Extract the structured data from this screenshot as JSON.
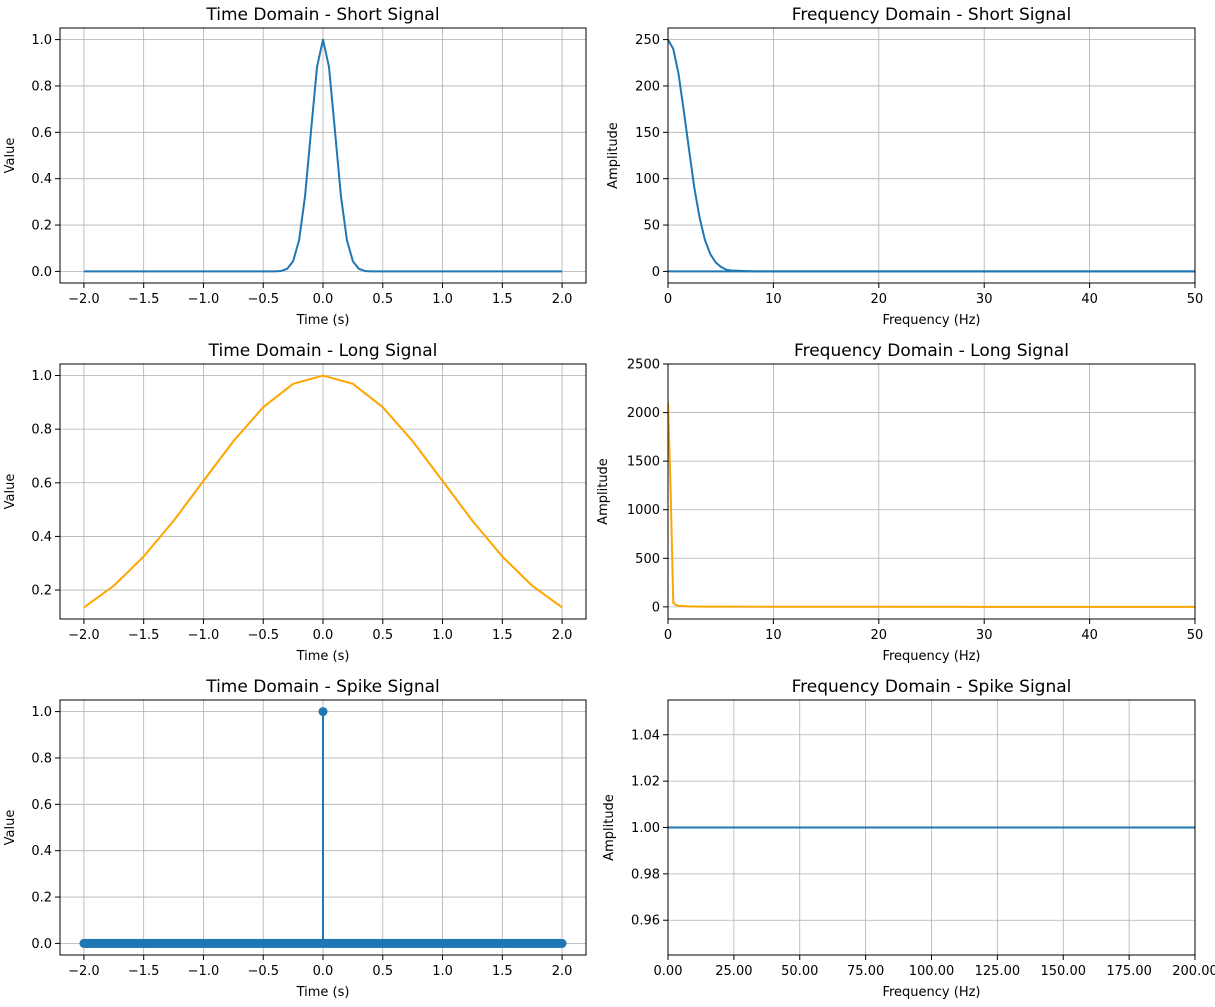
{
  "chart_data": [
    {
      "type": "line",
      "title": "Time Domain - Short Signal",
      "xlabel": "Time (s)",
      "ylabel": "Value",
      "xlim": [
        -2.2,
        2.2
      ],
      "ylim": [
        -0.05,
        1.05
      ],
      "xticks": [
        -2.0,
        -1.5,
        -1.0,
        -0.5,
        0.0,
        0.5,
        1.0,
        1.5,
        2.0
      ],
      "yticks": [
        0.0,
        0.2,
        0.4,
        0.6,
        0.8,
        1.0
      ],
      "tick_decimals": 1,
      "grid": true,
      "series": [
        {
          "color": "#1f77b4",
          "x": [
            -2.0,
            -0.6,
            -0.4,
            -0.35,
            -0.3,
            -0.25,
            -0.2,
            -0.15,
            -0.1,
            -0.05,
            0.0,
            0.05,
            0.1,
            0.15,
            0.2,
            0.25,
            0.3,
            0.35,
            0.4,
            0.6,
            2.0
          ],
          "y": [
            0.0,
            0.0,
            0.0,
            0.002,
            0.011,
            0.044,
            0.135,
            0.325,
            0.607,
            0.882,
            1.0,
            0.882,
            0.607,
            0.325,
            0.135,
            0.044,
            0.011,
            0.002,
            0.0,
            0.0,
            0.0
          ]
        }
      ]
    },
    {
      "type": "line",
      "title": "Frequency Domain - Short Signal",
      "xlabel": "Frequency (Hz)",
      "ylabel": "Amplitude",
      "xlim": [
        0,
        50
      ],
      "ylim": [
        -12.5,
        262.5
      ],
      "xticks": [
        0,
        10,
        20,
        30,
        40,
        50
      ],
      "yticks": [
        0,
        50,
        100,
        150,
        200,
        250
      ],
      "tick_decimals": 0,
      "grid": true,
      "series": [
        {
          "color": "#1f77b4",
          "x": [
            0,
            0.5,
            1,
            1.5,
            2,
            2.5,
            3,
            3.5,
            4,
            4.5,
            5,
            5.5,
            6,
            8,
            50
          ],
          "y": [
            250,
            240,
            213,
            173,
            131,
            90,
            58,
            34,
            19,
            10,
            5,
            2,
            1,
            0,
            0
          ]
        },
        {
          "color": "#1f77b4",
          "x": [
            0,
            50
          ],
          "y": [
            0,
            0
          ]
        }
      ]
    },
    {
      "type": "line",
      "title": "Time Domain - Long Signal",
      "xlabel": "Time (s)",
      "ylabel": "Value",
      "xlim": [
        -2.2,
        2.2
      ],
      "ylim": [
        0.092,
        1.043
      ],
      "xticks": [
        -2.0,
        -1.5,
        -1.0,
        -0.5,
        0.0,
        0.5,
        1.0,
        1.5,
        2.0
      ],
      "yticks": [
        0.2,
        0.4,
        0.6,
        0.8,
        1.0
      ],
      "tick_decimals": 1,
      "grid": true,
      "series": [
        {
          "color": "#ffa500",
          "x": [
            -2.0,
            -1.75,
            -1.5,
            -1.25,
            -1.0,
            -0.75,
            -0.5,
            -0.25,
            0.0,
            0.25,
            0.5,
            0.75,
            1.0,
            1.25,
            1.5,
            1.75,
            2.0
          ],
          "y": [
            0.135,
            0.216,
            0.325,
            0.458,
            0.607,
            0.755,
            0.882,
            0.969,
            1.0,
            0.969,
            0.882,
            0.755,
            0.607,
            0.458,
            0.325,
            0.216,
            0.135
          ]
        }
      ]
    },
    {
      "type": "line",
      "title": "Frequency Domain - Long Signal",
      "xlabel": "Frequency (Hz)",
      "ylabel": "Amplitude",
      "xlim": [
        0,
        50
      ],
      "ylim": [
        -125,
        2500
      ],
      "xticks": [
        0,
        10,
        20,
        30,
        40,
        50
      ],
      "yticks": [
        0,
        500,
        1000,
        1500,
        2000,
        2500
      ],
      "tick_decimals": 0,
      "grid": true,
      "series": [
        {
          "color": "#ffa500",
          "x": [
            0,
            0.25,
            0.5,
            0.75,
            1,
            1.5,
            2,
            3,
            5,
            10,
            50
          ],
          "y": [
            2100,
            1200,
            40,
            20,
            12,
            8,
            5,
            3,
            2,
            1,
            0
          ]
        }
      ]
    },
    {
      "type": "scatter",
      "title": "Time Domain - Spike Signal",
      "xlabel": "Time (s)",
      "ylabel": "Value",
      "xlim": [
        -2.2,
        2.2
      ],
      "ylim": [
        -0.05,
        1.05
      ],
      "xticks": [
        -2.0,
        -1.5,
        -1.0,
        -0.5,
        0.0,
        0.5,
        1.0,
        1.5,
        2.0
      ],
      "yticks": [
        0.0,
        0.2,
        0.4,
        0.6,
        0.8,
        1.0
      ],
      "tick_decimals": 1,
      "grid": true,
      "stem": {
        "color": "#1f77b4",
        "x_start": -2.0,
        "x_end": 2.0,
        "step": 0.01,
        "spike_x": 0.0,
        "spike_y": 1.0,
        "baseline": 0.0
      }
    },
    {
      "type": "line",
      "title": "Frequency Domain - Spike Signal",
      "xlabel": "Frequency (Hz)",
      "ylabel": "Amplitude",
      "xlim": [
        0,
        200
      ],
      "ylim": [
        0.945,
        1.055
      ],
      "xticks": [
        0,
        25,
        50,
        75,
        100,
        125,
        150,
        175,
        200
      ],
      "yticks": [
        0.96,
        0.98,
        1.0,
        1.02,
        1.04
      ],
      "tick_decimals": 2,
      "grid": true,
      "series": [
        {
          "color": "#1f77b4",
          "x": [
            0,
            200
          ],
          "y": [
            1.0,
            1.0
          ]
        }
      ]
    }
  ]
}
